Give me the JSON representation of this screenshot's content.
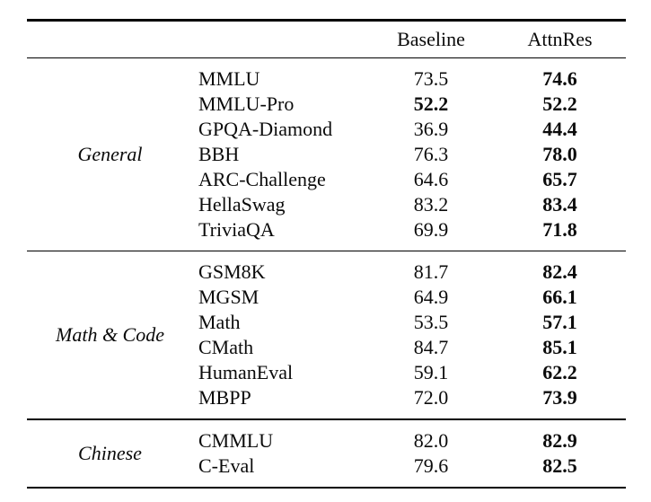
{
  "header": {
    "baseline": "Baseline",
    "attnres": "AttnRes"
  },
  "sections": [
    {
      "category": "General",
      "rows": [
        {
          "benchmark": "MMLU",
          "baseline": "73.5",
          "attnres": "74.6"
        },
        {
          "benchmark": "MMLU-Pro",
          "baseline": "52.2",
          "attnres": "52.2"
        },
        {
          "benchmark": "GPQA-Diamond",
          "baseline": "36.9",
          "attnres": "44.4"
        },
        {
          "benchmark": "BBH",
          "baseline": "76.3",
          "attnres": "78.0"
        },
        {
          "benchmark": "ARC-Challenge",
          "baseline": "64.6",
          "attnres": "65.7"
        },
        {
          "benchmark": "HellaSwag",
          "baseline": "83.2",
          "attnres": "83.4"
        },
        {
          "benchmark": "TriviaQA",
          "baseline": "69.9",
          "attnres": "71.8"
        }
      ]
    },
    {
      "category": "Math & Code",
      "rows": [
        {
          "benchmark": "GSM8K",
          "baseline": "81.7",
          "attnres": "82.4"
        },
        {
          "benchmark": "MGSM",
          "baseline": "64.9",
          "attnres": "66.1"
        },
        {
          "benchmark": "Math",
          "baseline": "53.5",
          "attnres": "57.1"
        },
        {
          "benchmark": "CMath",
          "baseline": "84.7",
          "attnres": "85.1"
        },
        {
          "benchmark": "HumanEval",
          "baseline": "59.1",
          "attnres": "62.2"
        },
        {
          "benchmark": "MBPP",
          "baseline": "72.0",
          "attnres": "73.9"
        }
      ]
    },
    {
      "category": "Chinese",
      "rows": [
        {
          "benchmark": "CMMLU",
          "baseline": "82.0",
          "attnres": "82.9"
        },
        {
          "benchmark": "C-Eval",
          "baseline": "79.6",
          "attnres": "82.5"
        }
      ]
    }
  ],
  "emphasis": {
    "attnres_column_all_bold": true,
    "baseline_bold_rows": [
      "MMLU-Pro"
    ]
  },
  "colors": {
    "background": "#ffffff",
    "text": "#0b0b0b",
    "rule": "#000000"
  }
}
